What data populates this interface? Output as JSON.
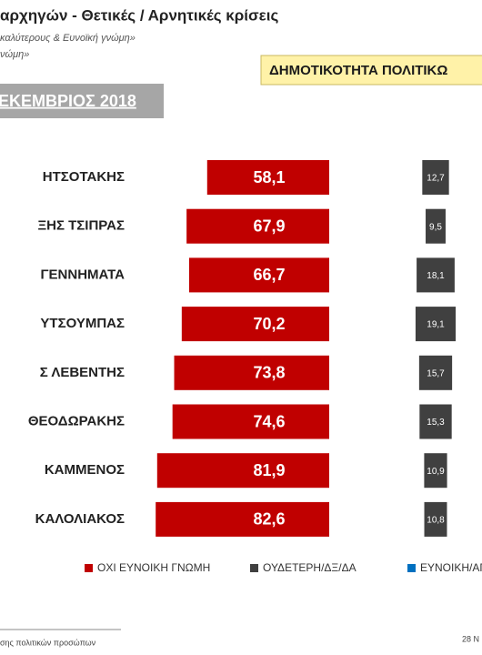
{
  "chart_data": {
    "type": "bar",
    "title": "αρχηγών  - Θετικές / Αρνητικές κρίσεις",
    "subtitle": [
      "καλύτερους &  Ευνοϊκή γνώμη»",
      "νώμη»"
    ],
    "banner": "ΔΗΜΟΤΙΚΟΤΗΤΑ ΠΟΛΙΤΙΚΩ",
    "period": "ΕΚΕΜΒΡΙΟΣ 2018",
    "categories": [
      "ΗΤΣΟΤΑΚΗΣ",
      "ΞΗΣ ΤΣΙΠΡΑΣ",
      "ΓΕΝΝΗΜΑΤΑ",
      "ΥΤΣΟΥΜΠΑΣ",
      "Σ ΛΕΒΕΝΤΗΣ",
      "ΘΕΟΔΩΡΑΚΗΣ",
      "ΚΑΜΜΕΝΟΣ",
      "ΚΑΛΟΛΙΑΚΟΣ"
    ],
    "series": [
      {
        "name": "ΟΧΙ ΕΥΝΟΙΚΗ ΓΝΩΜΗ",
        "color": "#c00000",
        "values": [
          58.1,
          67.9,
          66.7,
          70.2,
          73.8,
          74.6,
          81.9,
          82.6
        ],
        "value_labels": [
          "58,1",
          "67,9",
          "66,7",
          "70,2",
          "73,8",
          "74,6",
          "81,9",
          "82,6"
        ]
      },
      {
        "name": "ΟΥΔΕΤΕΡΗ/ΔΞ/ΔΑ",
        "color": "#404040",
        "values": [
          12.7,
          9.5,
          18.1,
          19.1,
          15.7,
          15.3,
          10.9,
          10.8
        ],
        "value_labels": [
          "12,7",
          "9,5",
          "18,1",
          "19,1",
          "15,7",
          "15,3",
          "10,9",
          "10,8"
        ]
      },
      {
        "name": "ΕΥΝΟΙΚΗ/ΑΠ",
        "color": "#0070c0",
        "values": [
          null,
          null,
          null,
          null,
          null,
          null,
          null,
          null
        ]
      }
    ],
    "footnote": "σης πολιτικών προσώπων",
    "date": "28 Ν"
  }
}
